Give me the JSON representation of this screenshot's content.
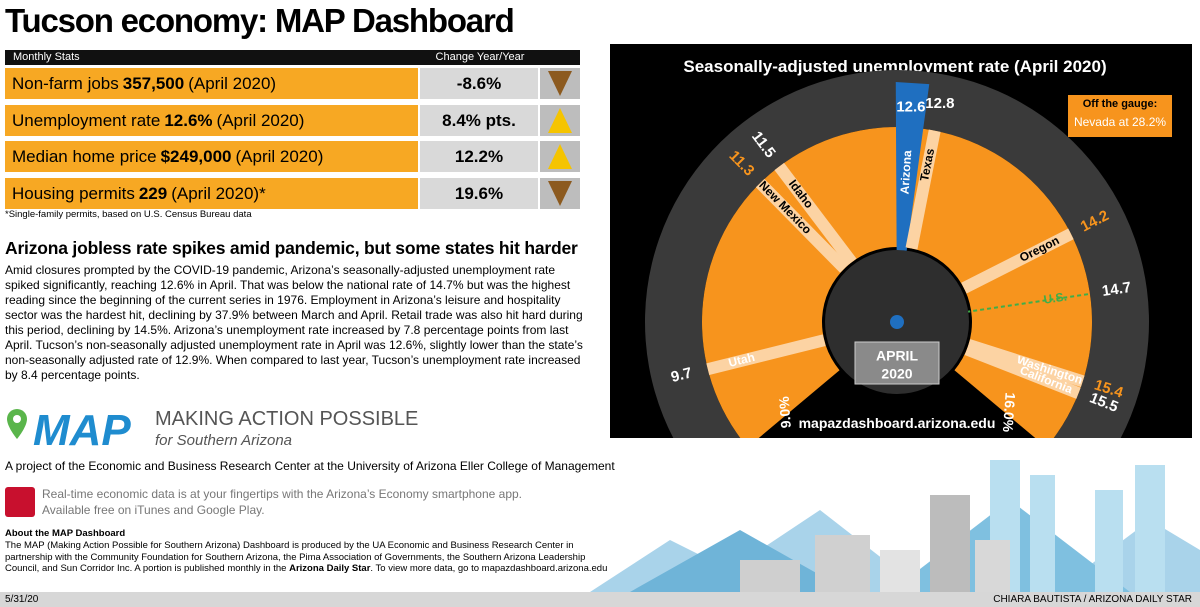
{
  "header": {
    "title": "Tucson economy: MAP Dashboard"
  },
  "stats": {
    "col_label": "Monthly Stats",
    "col_change": "Change Year/Year",
    "rows": [
      {
        "label": "Non-farm jobs",
        "value": "357,500",
        "period": "(April 2020)",
        "change": "-8.6%",
        "trend": "down"
      },
      {
        "label": "Unemployment rate",
        "value": "12.6%",
        "period": "(April 2020)",
        "change": "8.4% pts.",
        "trend": "up"
      },
      {
        "label": "Median home price",
        "value": "$249,000",
        "period": "(April 2020)",
        "change": "12.2%",
        "trend": "up"
      },
      {
        "label": "Housing permits",
        "value": "229",
        "period": "(April 2020)*",
        "change": "19.6%",
        "trend": "down"
      }
    ],
    "footnote": "*Single-family permits, based on U.S. Census Bureau data"
  },
  "article": {
    "headline": "Arizona jobless rate spikes amid pandemic, but some states hit harder",
    "body": "Amid closures prompted by the COVID-19 pandemic, Arizona’s seasonally-adjusted unemployment rate spiked significantly, reaching 12.6% in April. That was below the national rate of 14.7% but was the highest reading since the beginning of the current series in 1976. Employment in Arizona’s leisure and hospitality sector was the hardest hit, declining by 37.9% between March and April. Retail trade was also hit hard during this period, declining by 14.5%.  Arizona’s unemployment rate increased by 7.8 percentage points from last April. Tucson’s non-seasonally adjusted unemployment rate in April was 12.6%, slightly lower than the state’s non-seasonally adjusted rate of 12.9%. When compared to last year, Tucson’s unemployment rate increased by 8.4 percentage points."
  },
  "gauge": {
    "title": "Seasonally-adjusted unemployment rate  (April 2020)",
    "min": {
      "value": 9.0,
      "label": "9.0%"
    },
    "max": {
      "value": 16.0,
      "label": "16.0%"
    },
    "readings": [
      {
        "name": "Utah",
        "value": 9.7,
        "label_color": "#ffffff"
      },
      {
        "name": "New Mexico",
        "value": 11.3,
        "label_color": "#f7941d"
      },
      {
        "name": "Idaho",
        "value": 11.5,
        "label_color": "#ffffff"
      },
      {
        "name": "Arizona",
        "value": 12.6,
        "label_color": "#ffffff",
        "highlight": true
      },
      {
        "name": "Texas",
        "value": 12.8,
        "label_color": "#ffffff"
      },
      {
        "name": "Oregon",
        "value": 14.2,
        "label_color": "#f7941d"
      },
      {
        "name": "U.S.",
        "value": 14.7,
        "label_color": "#ffffff",
        "dashed": true
      },
      {
        "name": "Washington",
        "value": 15.4,
        "label_color": "#f7941d"
      },
      {
        "name": "California",
        "value": 15.5,
        "label_color": "#ffffff"
      }
    ],
    "badge": [
      "APRIL",
      "2020"
    ],
    "off_gauge": {
      "title": "Off the gauge:",
      "text": "Nevada at 28.2%"
    },
    "url": "mapazdashboard.arizona.edu"
  },
  "footer": {
    "logo": "MAP",
    "tagline": "MAKING ACTION POSSIBLE",
    "tagline_sub": "for Southern Arizona",
    "project": "A project of the Economic and Business Research Center at the University of Arizona Eller College of Management",
    "app_line1": "Real-time economic data is at your fingertips with the Arizona’s Economy smartphone app.",
    "app_line2": "Available free on iTunes and Google Play.",
    "about_title": "About the MAP Dashboard",
    "about_text": "The MAP (Making Action Possible for Southern Arizona) Dashboard is produced by the UA Economic and Business Research Center in partnership with the Community Foundation for Southern Arizona, the Pima Association of Governments, the Southern Arizona Leadership Council, and Sun Corridor Inc. A portion is published monthly in the",
    "about_paper": "Arizona Daily Star",
    "about_end": ". To view more data, go to mapazdashboard.arizona.edu",
    "date": "5/31/20",
    "credit": "CHIARA BAUTISTA / ARIZONA DAILY STAR"
  }
}
